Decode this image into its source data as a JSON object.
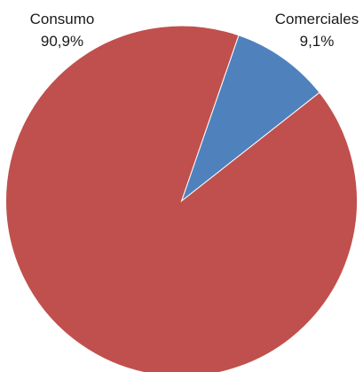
{
  "chart_data": {
    "type": "pie",
    "title": "",
    "slices": [
      {
        "name": "Consumo",
        "value": 90.9,
        "label": "90,9%",
        "color": "#c0504d"
      },
      {
        "name": "Comerciales",
        "value": 9.1,
        "label": "9,1%",
        "color": "#4f81bd"
      }
    ],
    "legend": "none",
    "start_slice": "Comerciales",
    "direction": "clockwise",
    "slice_edge_color": "#ffffff"
  }
}
